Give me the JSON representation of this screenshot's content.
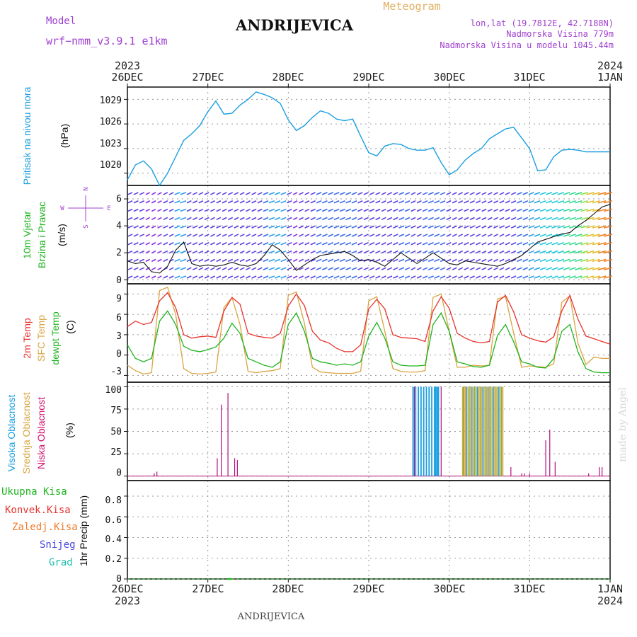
{
  "header": {
    "model_label": "Model",
    "model_name": "wrf−nmm_v3.9.1  e1km",
    "title": "ANDRIJEVICA",
    "meteogram_label": "Meteogram",
    "lonlat": "lon,lat (19.7812E, 42.7188N)",
    "altitude": "Nadmorska Visina 779m",
    "model_altitude": "Nadmorska Visina u modelu 1045.44m"
  },
  "footer_title": "ANDRIJEVICA",
  "watermark": "made by Angel",
  "colors": {
    "pressure": "#1a9ee0",
    "temp2m": "#e8332e",
    "sfc": "#d9a441",
    "dewpt": "#1db31d",
    "high_cloud": "#1a9ee0",
    "mid_cloud": "#d9a441",
    "low_cloud": "#b0107a",
    "wind_label": "#1db31d",
    "compass": "#a040d0"
  },
  "top_axis": {
    "year_left": "2023",
    "year_right": "2024",
    "dates": [
      "26DEC",
      "27DEC",
      "28DEC",
      "29DEC",
      "30DEC",
      "31DEC",
      "1JAN"
    ]
  },
  "bottom_axis": {
    "year_left": "2023",
    "year_right": "2024",
    "dates": [
      "26DEC",
      "27DEC",
      "28DEC",
      "29DEC",
      "30DEC",
      "31DEC",
      "1JAN"
    ]
  },
  "panels": {
    "pressure": {
      "ylabel": "Pritisak na nivou mora",
      "unit": "(hPa)",
      "ticks": [
        "1020",
        "1023",
        "1026",
        "1029"
      ]
    },
    "wind": {
      "ylabel_line1": "10m Vjetar",
      "ylabel_line2": "Brzina i Pravac",
      "unit": "(m/s)",
      "ticks": [
        "0",
        "2",
        "4",
        "6"
      ],
      "compass": {
        "n": "N",
        "s": "S",
        "e": "E",
        "w": "W"
      }
    },
    "temperature": {
      "ylabel_2m": "2m Temp",
      "ylabel_sfc": "SFC Temp",
      "ylabel_dewpt": "dewpt Temp",
      "unit": "(C)",
      "ticks": [
        "-3",
        "0",
        "3",
        "6",
        "9"
      ]
    },
    "cloud": {
      "ylabel_high": "Visoka Oblacnost",
      "ylabel_mid": "Srednja Oblacnost",
      "ylabel_low": "Niska Oblacnost",
      "unit": "(%)",
      "ticks": [
        "0",
        "25",
        "50",
        "75",
        "100"
      ]
    },
    "precip": {
      "legend": [
        {
          "label": "Ukupna Kisa",
          "color": "#1db31d"
        },
        {
          "label": "Konvek.Kisa",
          "color": "#e8332e"
        },
        {
          "label": "Zaledj.Kisa",
          "color": "#f07a28"
        },
        {
          "label": "Snijeg",
          "color": "#4848e0"
        },
        {
          "label": "Grad",
          "color": "#20c0b0"
        }
      ],
      "unit": "1hr Precip (mm)",
      "ticks": [
        "0",
        "0.2",
        "0.4",
        "0.6",
        "0.8"
      ]
    }
  },
  "chart_data": [
    {
      "type": "line",
      "name": "pressure",
      "x_hours": [
        0,
        3,
        6,
        9,
        12,
        15,
        18,
        21,
        24,
        27,
        30,
        33,
        36,
        39,
        42,
        45,
        48,
        51,
        54,
        57,
        60,
        63,
        66,
        69,
        72,
        75,
        78,
        81,
        84,
        87,
        90,
        93,
        96,
        99,
        102,
        105,
        108,
        111,
        114,
        117,
        120,
        123,
        126,
        129,
        132,
        135,
        138,
        141,
        144,
        147,
        150,
        153,
        156,
        159,
        162,
        165,
        168,
        171,
        174,
        177,
        180
      ],
      "x_range": [
        0,
        180
      ],
      "ylim": [
        1018.5,
        1030.5
      ],
      "series": [
        {
          "values": [
            1019.2,
            1021,
            1021.5,
            1020.5,
            1018.5,
            1020,
            1022,
            1024,
            1024.8,
            1025.8,
            1027.5,
            1028.8,
            1027.2,
            1027.3,
            1028.3,
            1029,
            1029.9,
            1029.6,
            1029.2,
            1028.5,
            1026.5,
            1025.2,
            1025.8,
            1026.8,
            1027.6,
            1027.3,
            1026.6,
            1026.4,
            1026.6,
            1024.5,
            1022.5,
            1022.1,
            1023.3,
            1023.6,
            1023.5,
            1023,
            1022.8,
            1022.8,
            1023.1,
            1021.3,
            1019.8,
            1020.4,
            1021.6,
            1022.4,
            1023,
            1024.2,
            1024.8,
            1025.4,
            1025.6,
            1024.3,
            1023,
            1020.3,
            1020.4,
            1022,
            1022.8,
            1022.9,
            1022.8,
            1022.6,
            1022.6,
            1022.6,
            1022.6
          ]
        }
      ]
    },
    {
      "type": "line",
      "name": "wind_speed",
      "x_hours": [
        0,
        3,
        6,
        9,
        12,
        15,
        18,
        21,
        24,
        27,
        30,
        33,
        36,
        39,
        42,
        45,
        48,
        51,
        54,
        57,
        60,
        63,
        66,
        69,
        72,
        75,
        78,
        81,
        84,
        87,
        90,
        93,
        96,
        99,
        102,
        105,
        108,
        111,
        114,
        117,
        120,
        123,
        126,
        129,
        132,
        135,
        138,
        141,
        144,
        147,
        150,
        153,
        156,
        159,
        162,
        165,
        168,
        171,
        174,
        177,
        180
      ],
      "x_range": [
        0,
        180
      ],
      "ylim": [
        -0.3,
        7
      ],
      "series": [
        {
          "name": "speed",
          "values": [
            1.4,
            1.2,
            1.3,
            0.6,
            0.5,
            1.0,
            2.2,
            2.8,
            1.2,
            1.0,
            1.1,
            1.0,
            1.1,
            1.3,
            1.1,
            1.0,
            1.2,
            1.8,
            2.6,
            2.2,
            1.5,
            0.7,
            1.1,
            1.5,
            1.8,
            1.9,
            2.0,
            2.1,
            1.8,
            1.4,
            1.5,
            1.3,
            1.0,
            1.5,
            2.0,
            1.6,
            1.2,
            1.6,
            2.0,
            1.6,
            1.2,
            1.1,
            1.4,
            1.3,
            1.2,
            1.1,
            1.0,
            1.2,
            1.5,
            1.8,
            2.3,
            2.8,
            3.0,
            3.2,
            3.4,
            3.5,
            4.0,
            4.4,
            4.9,
            5.4,
            5.6
          ]
        }
      ]
    },
    {
      "type": "line",
      "name": "temperature",
      "x_hours": [
        0,
        3,
        6,
        9,
        12,
        15,
        18,
        21,
        24,
        27,
        30,
        33,
        36,
        39,
        42,
        45,
        48,
        51,
        54,
        57,
        60,
        63,
        66,
        69,
        72,
        75,
        78,
        81,
        84,
        87,
        90,
        93,
        96,
        99,
        102,
        105,
        108,
        111,
        114,
        117,
        120,
        123,
        126,
        129,
        132,
        135,
        138,
        141,
        144,
        147,
        150,
        153,
        156,
        159,
        162,
        165,
        168,
        171,
        174,
        177,
        180
      ],
      "x_range": [
        0,
        180
      ],
      "ylim": [
        -4,
        10.5
      ],
      "series": [
        {
          "name": "2m",
          "values": [
            4.2,
            5,
            4.5,
            4.8,
            8,
            9.2,
            7,
            3,
            2.5,
            2.7,
            2.8,
            2.6,
            6.5,
            8.5,
            7.5,
            3.2,
            2.8,
            2.6,
            2.5,
            3.2,
            7.2,
            9,
            7.3,
            3.5,
            2.2,
            1.8,
            1.0,
            0.5,
            0.5,
            1.5,
            6.8,
            8.2,
            6.8,
            3,
            2.6,
            2.5,
            2.4,
            2,
            6.5,
            8.6,
            6.9,
            3.2,
            2.5,
            2.0,
            1.8,
            2,
            7.8,
            8.8,
            6.4,
            3,
            2.5,
            2.1,
            1.9,
            2.7,
            6.5,
            8.8,
            5.3,
            2.8,
            2.4,
            2.0,
            1.6
          ]
        },
        {
          "name": "sfc",
          "values": [
            -1.5,
            -2.3,
            -2.8,
            -2.6,
            9.5,
            10,
            6,
            -2,
            -2.7,
            -2.8,
            -2.7,
            -2.5,
            7,
            8.5,
            4.5,
            -2.4,
            -2.6,
            -2.4,
            -2.3,
            -2,
            8.8,
            9.3,
            4.7,
            -1.8,
            -2.5,
            -2.6,
            -2.7,
            -2.7,
            -2.7,
            -2.4,
            8,
            8.6,
            3.5,
            -2,
            -2.4,
            -2.5,
            -2.5,
            -2.3,
            8.5,
            9,
            3.5,
            -1.8,
            -1.8,
            -1.5,
            -1.6,
            -1.5,
            8.3,
            8.6,
            3.3,
            -1.8,
            -1.6,
            -1.7,
            -1.8,
            -1.3,
            7.8,
            8.7,
            1.8,
            -1.4,
            -0.3,
            -0.5,
            -0.5
          ]
        },
        {
          "name": "dewpt",
          "values": [
            1.5,
            -0.5,
            -1,
            -0.5,
            5,
            6.5,
            4.5,
            1.3,
            0.7,
            0.5,
            0.8,
            1.2,
            2.5,
            4.7,
            3.2,
            -0.5,
            -1,
            -1.5,
            -1.8,
            -1,
            4.5,
            6.2,
            3.5,
            -0.5,
            -1,
            -1.2,
            -1.5,
            -1.3,
            -1.5,
            -1,
            2.8,
            4.8,
            2.5,
            -1,
            -1.5,
            -1.6,
            -1.6,
            -1.5,
            4.5,
            6.2,
            3.5,
            -1,
            -1.3,
            -1.7,
            -1.8,
            -1.5,
            2.9,
            4.5,
            2,
            -1,
            -1.3,
            -1.8,
            -1.9,
            -0.5,
            3.5,
            4.5,
            0.5,
            -2,
            -2.5,
            -2.6,
            -2.6
          ]
        }
      ]
    },
    {
      "type": "bar",
      "name": "cloud_cover",
      "x_range": [
        0,
        180
      ],
      "ylim": [
        -5,
        105
      ],
      "series": [
        {
          "name": "high",
          "x_hours": [
            106.5,
            107.5,
            108.5,
            109.5,
            110.5,
            111.5,
            112.5,
            113.5,
            114.5,
            115,
            115.5,
            116
          ],
          "values": [
            100,
            100,
            100,
            100,
            100,
            100,
            100,
            100,
            100,
            100,
            100,
            100
          ]
        },
        {
          "name": "mid",
          "x_hours": [
            125,
            125.5,
            126,
            127,
            128,
            129,
            130,
            131,
            132,
            133,
            134,
            135,
            136,
            137,
            138,
            139,
            140
          ],
          "values": [
            100,
            100,
            100,
            100,
            100,
            100,
            100,
            100,
            100,
            100,
            100,
            100,
            100,
            100,
            100,
            100,
            100
          ]
        },
        {
          "name": "low",
          "x_hours": [
            10,
            11,
            33.5,
            35,
            37.5,
            40,
            41,
            107,
            117,
            143,
            147,
            148,
            150,
            156,
            157.5,
            159.5,
            172,
            176,
            177
          ],
          "values": [
            3,
            5,
            20,
            80,
            93,
            20,
            18,
            100,
            100,
            10,
            3,
            3,
            3,
            40,
            52,
            16,
            3,
            10,
            10
          ]
        }
      ]
    },
    {
      "type": "bar",
      "name": "precipitation",
      "x_range": [
        0,
        180
      ],
      "ylim": [
        0,
        0.95
      ],
      "series": [
        {
          "name": "total",
          "x_hours": [
            38
          ],
          "values": [
            0.01
          ]
        }
      ]
    }
  ]
}
